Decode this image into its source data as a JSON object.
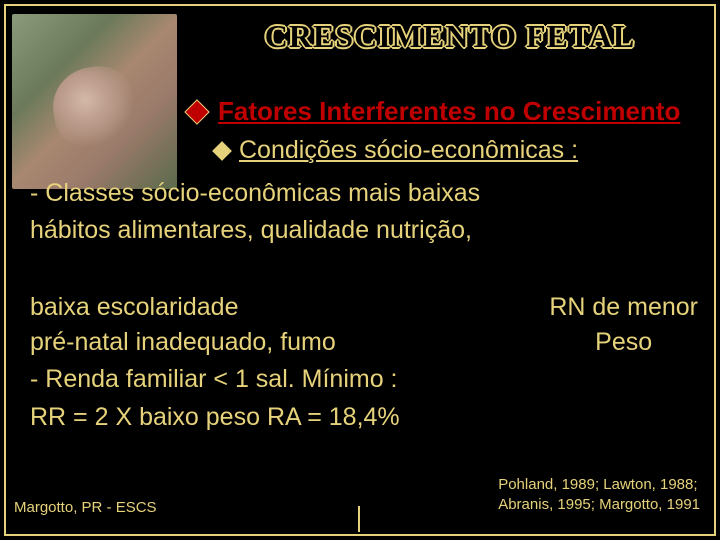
{
  "colors": {
    "background": "#000000",
    "accent": "#e6d27a",
    "highlight": "#c00000"
  },
  "typography": {
    "title_fontsize": 32,
    "body_fontsize": 25,
    "footer_fontsize": 15,
    "body_font": "Comic Sans MS",
    "title_font": "Georgia"
  },
  "title": "CRESCIMENTO  FETAL",
  "bullets": {
    "level1": "Fatores Interferentes no Crescimento",
    "level2": "Condições sócio-econômicas :"
  },
  "body": {
    "line_classes": "- Classes sócio-econômicas mais baixas",
    "line_habitos": "hábitos alimentares, qualidade nutrição,",
    "line_baixa": "baixa escolaridade",
    "line_prenatal": "pré-natal inadequado, fumo",
    "line_renda": " - Renda familiar < 1 sal. Mínimo :",
    "line_rr": " RR = 2 X baixo peso     RA = 18,4%"
  },
  "right_label": {
    "line1": "RN de menor",
    "line2": "Peso"
  },
  "footer": {
    "left": "Margotto, PR - ESCS",
    "right_line1": "Pohland, 1989; Lawton, 1988;",
    "right_line2": "Abranis, 1995; Margotto, 1991"
  }
}
